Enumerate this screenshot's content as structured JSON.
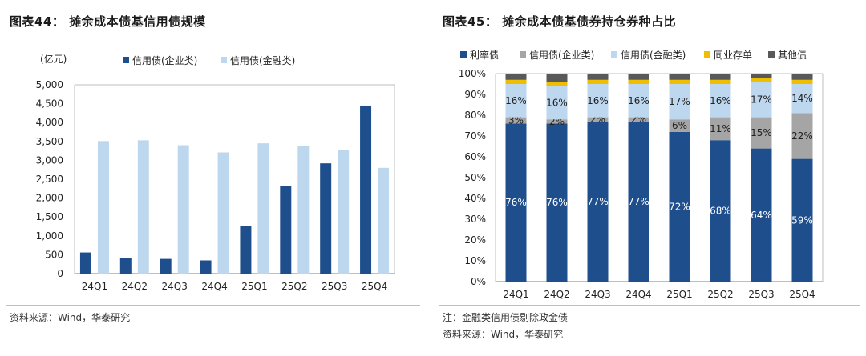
{
  "colors": {
    "dark_blue": "#1f4e8c",
    "light_blue": "#bdd7ee",
    "gray": "#a5a5a5",
    "yellow": "#f0be00",
    "dark_gray": "#595959",
    "rule": "#1f3f6f"
  },
  "left": {
    "title": "图表44： 摊余成本债基信用债规模",
    "source": "资料来源：Wind，华泰研究"
  },
  "right": {
    "title": "图表45： 摊余成本债基债券持仓券种占比",
    "note": "注：金融类信用债剔除政金债",
    "source": "资料来源：Wind，华泰研究"
  },
  "chart_data": [
    {
      "type": "bar",
      "title": "摊余成本债基信用债规模",
      "ylabel": "(亿元)",
      "ylim": [
        0,
        5000
      ],
      "yticks": [
        "0",
        "500",
        "1,000",
        "1,500",
        "2,000",
        "2,500",
        "3,000",
        "3,500",
        "4,000",
        "4,500",
        "5,000"
      ],
      "categories": [
        "24Q1",
        "24Q2",
        "24Q3",
        "24Q4",
        "25Q1",
        "25Q2",
        "25Q3",
        "25Q4"
      ],
      "series": [
        {
          "name": "信用债(企业类)",
          "color": "#1f4e8c",
          "values": [
            560,
            420,
            390,
            350,
            1260,
            2310,
            2920,
            4450
          ]
        },
        {
          "name": "信用债(金融类)",
          "color": "#bdd7ee",
          "values": [
            3510,
            3530,
            3400,
            3210,
            3450,
            3370,
            3280,
            2800
          ]
        }
      ]
    },
    {
      "type": "bar",
      "stacked": true,
      "title": "摊余成本债基债券持仓券种占比",
      "ylim": [
        0,
        100
      ],
      "yticks": [
        "0%",
        "10%",
        "20%",
        "30%",
        "40%",
        "50%",
        "60%",
        "70%",
        "80%",
        "90%",
        "100%"
      ],
      "categories": [
        "24Q1",
        "24Q2",
        "24Q3",
        "24Q4",
        "25Q1",
        "25Q2",
        "25Q3",
        "25Q4"
      ],
      "series": [
        {
          "name": "利率债",
          "color": "#1f4e8c",
          "values": [
            76,
            76,
            77,
            77,
            72,
            68,
            64,
            59
          ],
          "labels": [
            "76%",
            "76%",
            "77%",
            "77%",
            "72%",
            "68%",
            "64%",
            "59%"
          ],
          "label_color": "#ffffff"
        },
        {
          "name": "信用债(企业类)",
          "color": "#a5a5a5",
          "values": [
            3,
            2,
            2,
            2,
            6,
            11,
            15,
            22
          ],
          "labels": [
            "3%",
            "2%",
            "2%",
            "2%",
            "6%",
            "11%",
            "15%",
            "22%"
          ],
          "label_color": "#222222"
        },
        {
          "name": "信用债(金融类)",
          "color": "#bdd7ee",
          "values": [
            16,
            16,
            16,
            16,
            17,
            16,
            17,
            14
          ],
          "labels": [
            "16%",
            "16%",
            "16%",
            "16%",
            "17%",
            "16%",
            "17%",
            "14%"
          ],
          "label_color": "#222222"
        },
        {
          "name": "同业存单",
          "color": "#f0be00",
          "values": [
            2,
            2,
            2,
            2,
            2,
            2,
            2,
            2
          ]
        },
        {
          "name": "其他债",
          "color": "#595959",
          "values": [
            3,
            4,
            3,
            3,
            3,
            3,
            2,
            3
          ]
        }
      ]
    }
  ]
}
